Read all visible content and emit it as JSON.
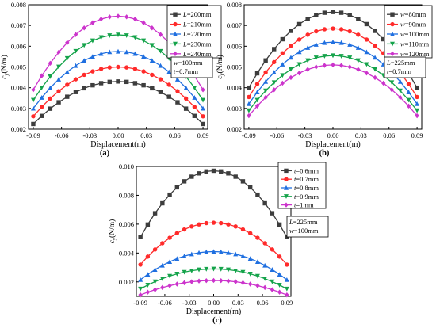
{
  "chart_data": [
    {
      "type": "line",
      "panel_label": "(a)",
      "xlabel": "Displacement(m)",
      "ylabel_main": "c",
      "ylabel_sub": "y",
      "ylabel_unit": "(N/m)",
      "xlim": [
        -0.095,
        0.095
      ],
      "ylim": [
        0.002,
        0.008
      ],
      "xticks": [
        -0.09,
        -0.06,
        -0.03,
        0.0,
        0.03,
        0.06,
        0.09
      ],
      "xtick_labels": [
        "-0.09",
        "-0.06",
        "-0.03",
        "0.00",
        "0.03",
        "0.06",
        "0.09"
      ],
      "yticks": [
        0.002,
        0.003,
        0.004,
        0.005,
        0.006,
        0.007,
        0.008
      ],
      "ytick_labels": [
        "0.002",
        "0.003",
        "0.004",
        "0.005",
        "0.006",
        "0.007",
        "0.008"
      ],
      "legend_placement": "top-right",
      "note_lines": [
        "w=100mm",
        "t=0.7mm"
      ],
      "x_range": [
        -0.09,
        0.09
      ],
      "points_per_series": 21,
      "series": [
        {
          "name_prefix": "L",
          "name_value": "=200mm",
          "color": "#3d3d3d",
          "marker": "square",
          "peak": 0.0043,
          "edge": 0.00225
        },
        {
          "name_prefix": "L",
          "name_value": "=210mm",
          "color": "#ff2a2a",
          "marker": "circle",
          "peak": 0.005,
          "edge": 0.00262
        },
        {
          "name_prefix": "L",
          "name_value": "=220mm",
          "color": "#1f6fe0",
          "marker": "triangle-up",
          "peak": 0.00575,
          "edge": 0.003
        },
        {
          "name_prefix": "L",
          "name_value": "=230mm",
          "color": "#14a34a",
          "marker": "triangle-down",
          "peak": 0.00655,
          "edge": 0.0034
        },
        {
          "name_prefix": "L",
          "name_value": "=240mm",
          "color": "#cc33cc",
          "marker": "diamond",
          "peak": 0.00745,
          "edge": 0.0039
        }
      ]
    },
    {
      "type": "line",
      "panel_label": "(b)",
      "xlabel": "Displacement(m)",
      "ylabel_main": "c",
      "ylabel_sub": "y",
      "ylabel_unit": "(N/m)",
      "xlim": [
        -0.095,
        0.095
      ],
      "ylim": [
        0.002,
        0.008
      ],
      "xticks": [
        -0.09,
        -0.06,
        -0.03,
        0.0,
        0.03,
        0.06,
        0.09
      ],
      "xtick_labels": [
        "-0.09",
        "-0.06",
        "-0.03",
        "0.00",
        "0.03",
        "0.06",
        "0.09"
      ],
      "yticks": [
        0.002,
        0.003,
        0.004,
        0.005,
        0.006,
        0.007,
        0.008
      ],
      "ytick_labels": [
        "0.002",
        "0.003",
        "0.004",
        "0.005",
        "0.006",
        "0.007",
        "0.008"
      ],
      "legend_placement": "top-right",
      "note_lines": [
        "L=225mm",
        "t=0.7mm"
      ],
      "x_range": [
        -0.09,
        0.09
      ],
      "points_per_series": 21,
      "series": [
        {
          "name_prefix": "w",
          "name_value": "=80mm",
          "color": "#3d3d3d",
          "marker": "square",
          "peak": 0.00765,
          "edge": 0.004
        },
        {
          "name_prefix": "w",
          "name_value": "=90mm",
          "color": "#ff2a2a",
          "marker": "circle",
          "peak": 0.00685,
          "edge": 0.00355
        },
        {
          "name_prefix": "w",
          "name_value": "=100mm",
          "color": "#1f6fe0",
          "marker": "triangle-up",
          "peak": 0.0062,
          "edge": 0.00322
        },
        {
          "name_prefix": "w",
          "name_value": "=110mm",
          "color": "#14a34a",
          "marker": "triangle-down",
          "peak": 0.00555,
          "edge": 0.0029
        },
        {
          "name_prefix": "w",
          "name_value": "=120mm",
          "color": "#cc33cc",
          "marker": "diamond",
          "peak": 0.0051,
          "edge": 0.00265
        }
      ]
    },
    {
      "type": "line",
      "panel_label": "(c)",
      "xlabel": "Displacement(m)",
      "ylabel_main": "c",
      "ylabel_sub": "y",
      "ylabel_unit": "(N/m)",
      "xlim": [
        -0.095,
        0.095
      ],
      "ylim": [
        0.001,
        0.01
      ],
      "xticks": [
        -0.09,
        -0.06,
        -0.03,
        0.0,
        0.03,
        0.06,
        0.09
      ],
      "xtick_labels": [
        "-0.09",
        "-0.06",
        "-0.03",
        "0.00",
        "0.03",
        "0.06",
        "0.09"
      ],
      "yticks": [
        0.002,
        0.004,
        0.006,
        0.008,
        0.01
      ],
      "ytick_labels": [
        "0.002",
        "0.004",
        "0.006",
        "0.008",
        "0.010"
      ],
      "legend_placement": "top-right",
      "note_lines": [
        "L=225mm",
        "w=100mm"
      ],
      "x_range": [
        -0.09,
        0.09
      ],
      "points_per_series": 21,
      "series": [
        {
          "name_prefix": "t",
          "name_value": "=0.6mm",
          "color": "#3d3d3d",
          "marker": "square",
          "peak": 0.0097,
          "edge": 0.0051
        },
        {
          "name_prefix": "t",
          "name_value": "=0.7mm",
          "color": "#ff2a2a",
          "marker": "circle",
          "peak": 0.0061,
          "edge": 0.0032
        },
        {
          "name_prefix": "t",
          "name_value": "=0.8mm",
          "color": "#1f6fe0",
          "marker": "triangle-up",
          "peak": 0.0041,
          "edge": 0.00215
        },
        {
          "name_prefix": "t",
          "name_value": "=0.9mm",
          "color": "#14a34a",
          "marker": "triangle-down",
          "peak": 0.0029,
          "edge": 0.00152
        },
        {
          "name_prefix": "t",
          "name_value": "=1mm",
          "color": "#cc33cc",
          "marker": "diamond",
          "peak": 0.0021,
          "edge": 0.0011
        }
      ]
    }
  ]
}
